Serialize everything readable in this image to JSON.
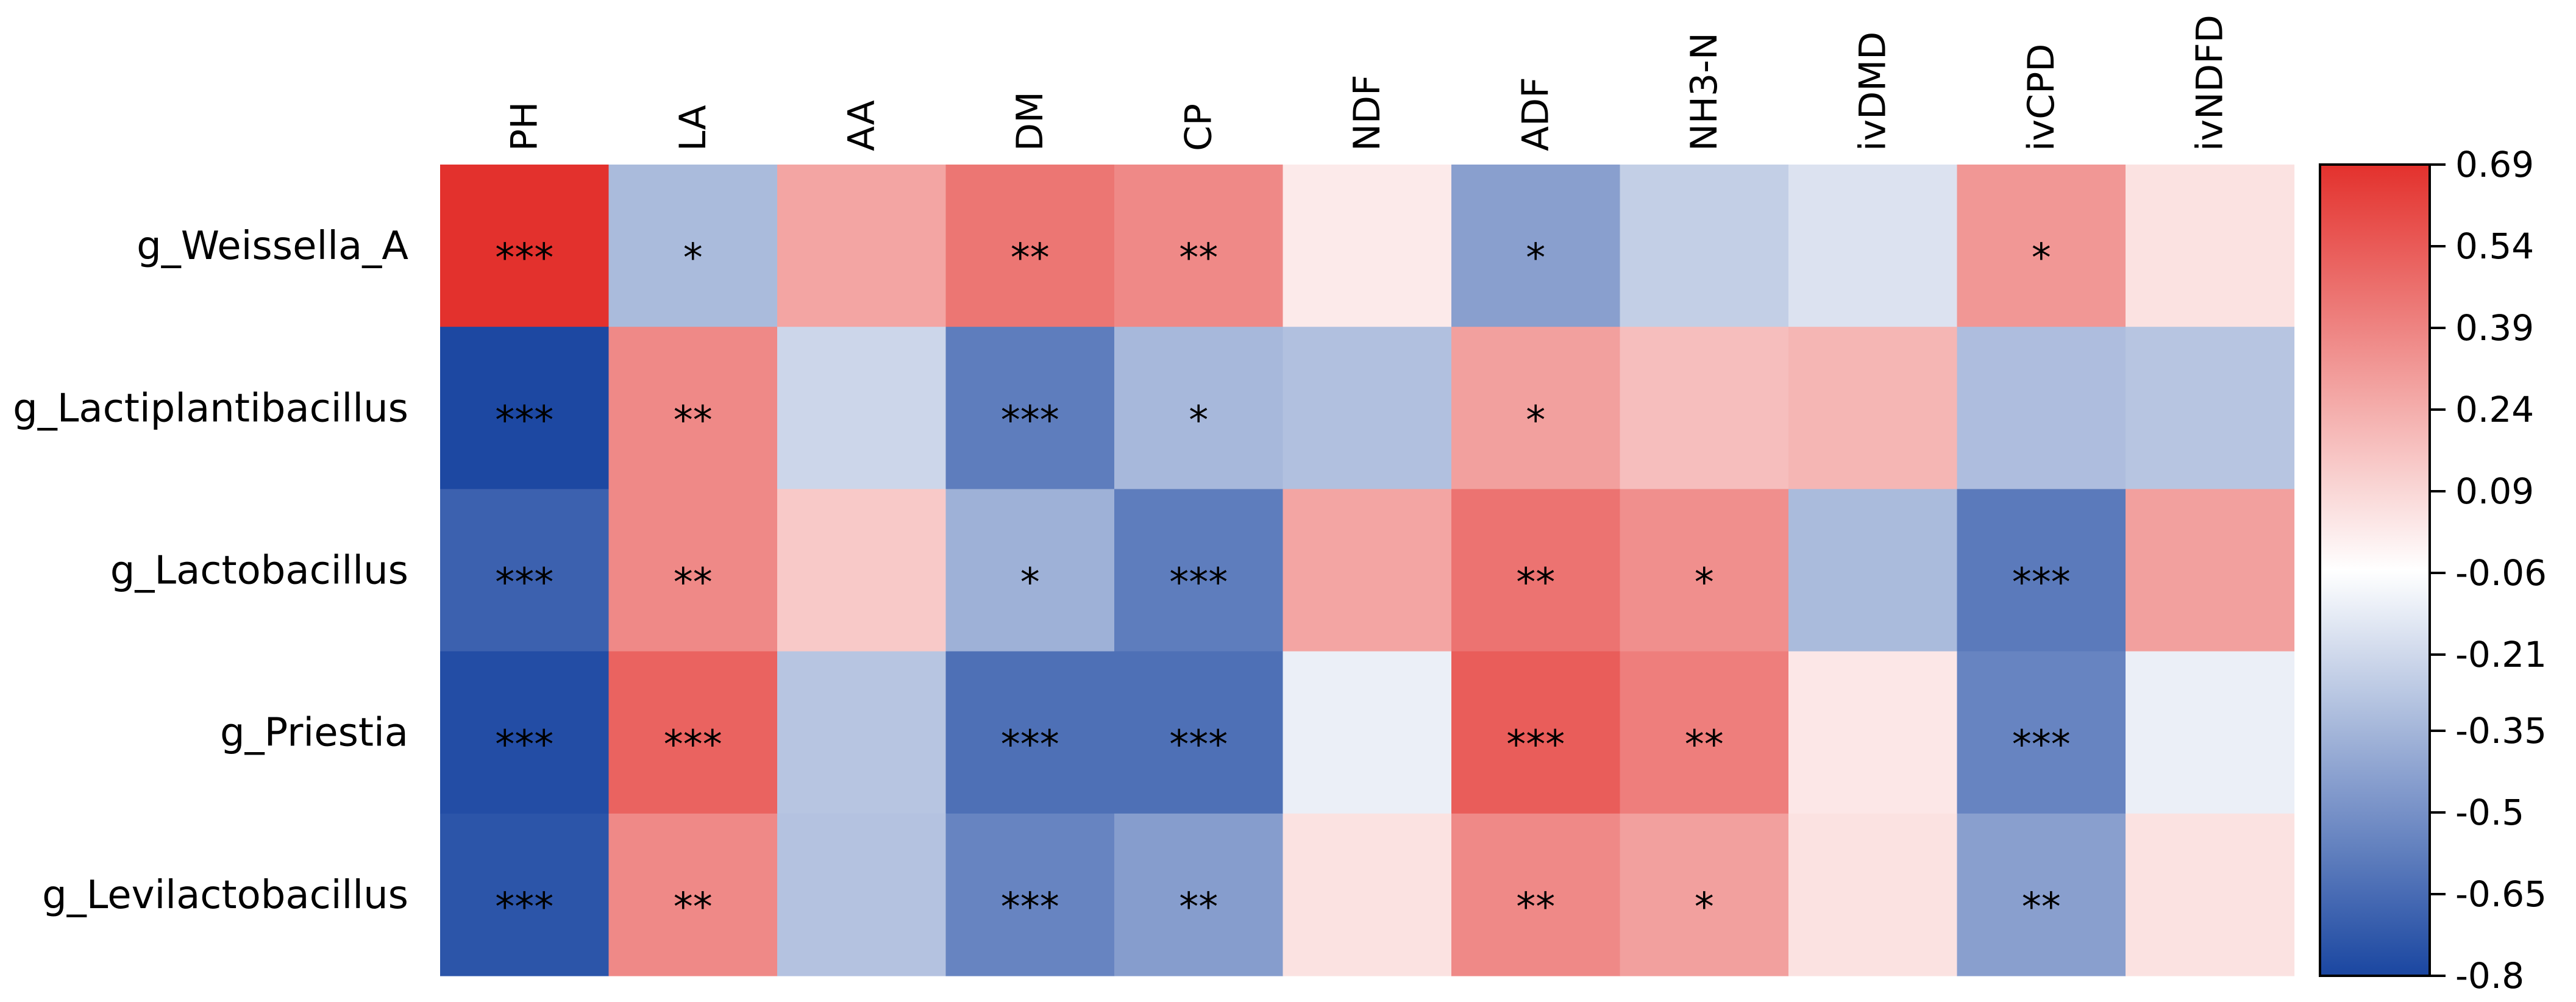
{
  "chart_data": {
    "type": "heatmap",
    "title": "",
    "columns": [
      "PH",
      "LA",
      "AA",
      "DM",
      "CP",
      "NDF",
      "ADF",
      "NH3-N",
      "ivDMD",
      "ivCPD",
      "ivNDFD"
    ],
    "rows": [
      "g_Weissella_A",
      "g_Lactiplantibacillus",
      "g_Lactobacillus",
      "g_Priestia",
      "g_Levilactobacillus"
    ],
    "values": [
      [
        0.69,
        -0.33,
        0.27,
        0.44,
        0.37,
        0.02,
        -0.44,
        -0.25,
        -0.17,
        0.32,
        0.05
      ],
      [
        -0.79,
        0.37,
        -0.22,
        -0.58,
        -0.34,
        -0.31,
        0.29,
        0.18,
        0.21,
        -0.32,
        -0.29
      ],
      [
        -0.69,
        0.37,
        0.14,
        -0.37,
        -0.58,
        0.27,
        0.45,
        0.35,
        -0.33,
        -0.59,
        0.29
      ],
      [
        -0.77,
        0.51,
        -0.29,
        -0.63,
        -0.63,
        -0.12,
        0.53,
        0.41,
        0.03,
        -0.55,
        -0.12
      ],
      [
        -0.74,
        0.37,
        -0.3,
        -0.55,
        -0.45,
        0.05,
        0.37,
        0.29,
        0.05,
        -0.44,
        0.05
      ]
    ],
    "significance": [
      [
        "***",
        "*",
        "",
        "**",
        "**",
        "",
        "*",
        "",
        "",
        "*",
        ""
      ],
      [
        "***",
        "**",
        "",
        "***",
        "*",
        "",
        "*",
        "",
        "",
        "",
        ""
      ],
      [
        "***",
        "**",
        "",
        "*",
        "***",
        "",
        "**",
        "*",
        "",
        "***",
        ""
      ],
      [
        "***",
        "***",
        "",
        "***",
        "***",
        "",
        "***",
        "**",
        "",
        "***",
        ""
      ],
      [
        "***",
        "**",
        "",
        "***",
        "**",
        "",
        "**",
        "*",
        "",
        "**",
        ""
      ]
    ],
    "colorbar": {
      "range": [
        -0.8,
        0.69
      ],
      "ticks": [
        0.69,
        0.54,
        0.39,
        0.24,
        0.09,
        -0.06,
        -0.21,
        -0.35,
        -0.5,
        -0.65,
        -0.8
      ],
      "tick_labels": [
        "0.69",
        "0.54",
        "0.39",
        "0.24",
        "0.09",
        "-0.06",
        "-0.21",
        "-0.35",
        "-0.5",
        "-0.65",
        "-0.8"
      ],
      "colors": {
        "low": "#1a46a1",
        "mid": "#ffffff",
        "high": "#e3312d"
      },
      "placement": "right"
    }
  }
}
